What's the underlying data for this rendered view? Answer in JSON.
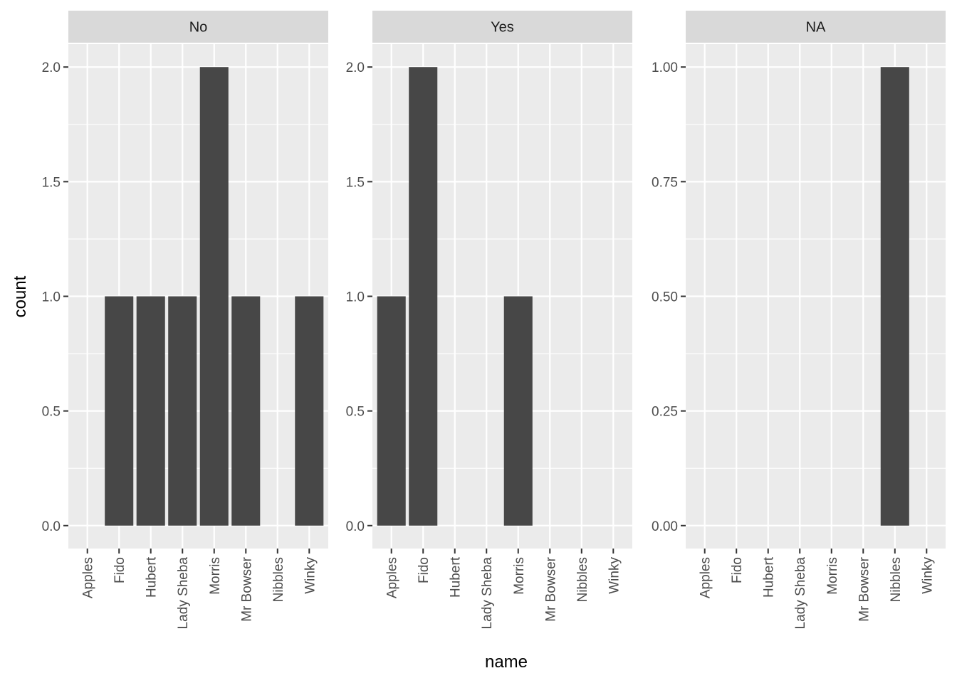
{
  "chart_data": {
    "type": "bar",
    "xlabel": "name",
    "ylabel": "count",
    "categories": [
      "Apples",
      "Fido",
      "Hubert",
      "Lady Sheba",
      "Morris",
      "Mr Bowser",
      "Nibbles",
      "Winky"
    ],
    "facets": [
      {
        "strip": "No",
        "values": [
          0,
          1,
          1,
          1,
          2,
          1,
          0,
          1
        ],
        "ylim": [
          -0.1,
          2.1
        ],
        "yticks": [
          0,
          0.5,
          1,
          1.5,
          2
        ],
        "ytick_labels": [
          "0.0",
          "0.5",
          "1.0",
          "1.5",
          "2.0"
        ]
      },
      {
        "strip": "Yes",
        "values": [
          1,
          2,
          0,
          0,
          1,
          0,
          0,
          0
        ],
        "ylim": [
          -0.1,
          2.1
        ],
        "yticks": [
          0,
          0.5,
          1,
          1.5,
          2
        ],
        "ytick_labels": [
          "0.0",
          "0.5",
          "1.0",
          "1.5",
          "2.0"
        ]
      },
      {
        "strip": "NA",
        "values": [
          0,
          0,
          0,
          0,
          0,
          0,
          1,
          0
        ],
        "ylim": [
          -0.05,
          1.05
        ],
        "yticks": [
          0,
          0.25,
          0.5,
          0.75,
          1
        ],
        "ytick_labels": [
          "0.00",
          "0.25",
          "0.50",
          "0.75",
          "1.00"
        ]
      }
    ],
    "grid": true,
    "colors": {
      "bar": "#474747",
      "panel": "#ebebeb",
      "strip": "#d9d9d9",
      "grid": "#ffffff"
    }
  }
}
